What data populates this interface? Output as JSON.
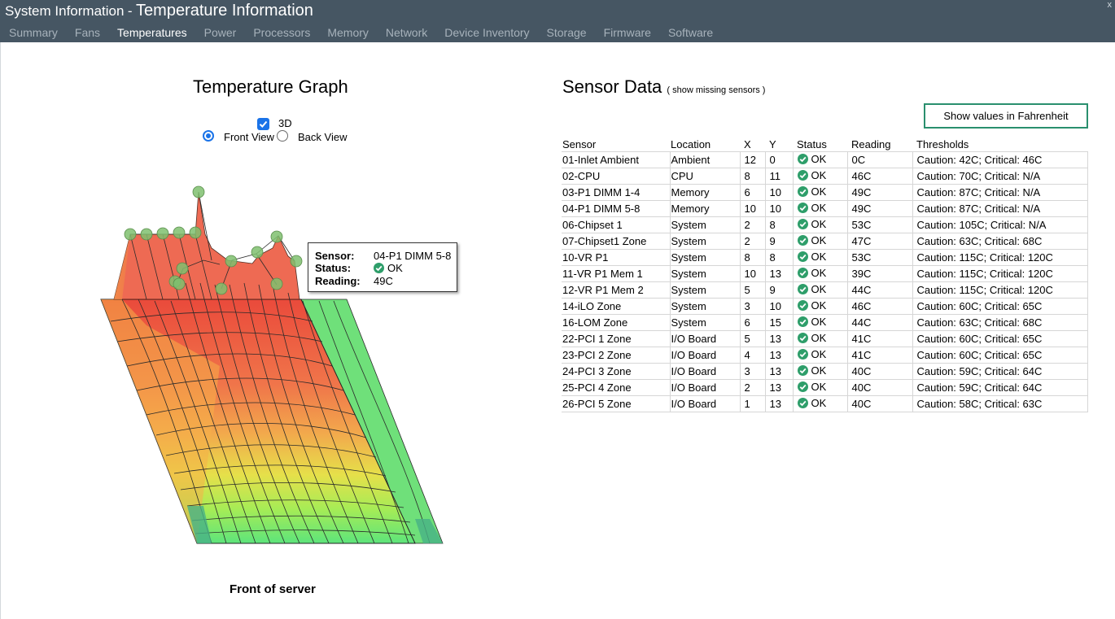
{
  "header": {
    "app_title": "System Information",
    "separator": "-",
    "page_title": "Temperature Information",
    "close_label": "x"
  },
  "tabs": [
    {
      "label": "Summary",
      "active": false
    },
    {
      "label": "Fans",
      "active": false
    },
    {
      "label": "Temperatures",
      "active": true
    },
    {
      "label": "Power",
      "active": false
    },
    {
      "label": "Processors",
      "active": false
    },
    {
      "label": "Memory",
      "active": false
    },
    {
      "label": "Network",
      "active": false
    },
    {
      "label": "Device Inventory",
      "active": false
    },
    {
      "label": "Storage",
      "active": false
    },
    {
      "label": "Firmware",
      "active": false
    },
    {
      "label": "Software",
      "active": false
    }
  ],
  "graph": {
    "title": "Temperature Graph",
    "checkbox_3d_label": "3D",
    "checkbox_3d_checked": true,
    "front_view_label": "Front View",
    "back_view_label": "Back View",
    "selected_view": "front",
    "caption": "Front of server",
    "tooltip": {
      "sensor_key": "Sensor:",
      "sensor_value": "04-P1 DIMM 5-8",
      "status_key": "Status:",
      "status_value": "OK",
      "reading_key": "Reading:",
      "reading_value": "49C"
    },
    "colors": {
      "hot": "#e8473a",
      "warm": "#f2a33c",
      "mild": "#e3e644",
      "cool": "#5ee877",
      "marker": "#7fbf6f"
    }
  },
  "sensors": {
    "title": "Sensor Data",
    "show_missing_link": "( show missing sensors )",
    "fahrenheit_button": "Show values in Fahrenheit",
    "columns": [
      "Sensor",
      "Location",
      "X",
      "Y",
      "Status",
      "Reading",
      "Thresholds"
    ],
    "rows": [
      {
        "sensor": "01-Inlet Ambient",
        "location": "Ambient",
        "x": "12",
        "y": "0",
        "status": "OK",
        "reading": "0C",
        "thresholds": "Caution: 42C; Critical: 46C"
      },
      {
        "sensor": "02-CPU",
        "location": "CPU",
        "x": "8",
        "y": "11",
        "status": "OK",
        "reading": "46C",
        "thresholds": "Caution: 70C; Critical: N/A"
      },
      {
        "sensor": "03-P1 DIMM 1-4",
        "location": "Memory",
        "x": "6",
        "y": "10",
        "status": "OK",
        "reading": "49C",
        "thresholds": "Caution: 87C; Critical: N/A"
      },
      {
        "sensor": "04-P1 DIMM 5-8",
        "location": "Memory",
        "x": "10",
        "y": "10",
        "status": "OK",
        "reading": "49C",
        "thresholds": "Caution: 87C; Critical: N/A"
      },
      {
        "sensor": "06-Chipset 1",
        "location": "System",
        "x": "2",
        "y": "8",
        "status": "OK",
        "reading": "53C",
        "thresholds": "Caution: 105C; Critical: N/A"
      },
      {
        "sensor": "07-Chipset1 Zone",
        "location": "System",
        "x": "2",
        "y": "9",
        "status": "OK",
        "reading": "47C",
        "thresholds": "Caution: 63C; Critical: 68C"
      },
      {
        "sensor": "10-VR P1",
        "location": "System",
        "x": "8",
        "y": "8",
        "status": "OK",
        "reading": "53C",
        "thresholds": "Caution: 115C; Critical: 120C"
      },
      {
        "sensor": "11-VR P1 Mem 1",
        "location": "System",
        "x": "10",
        "y": "13",
        "status": "OK",
        "reading": "39C",
        "thresholds": "Caution: 115C; Critical: 120C"
      },
      {
        "sensor": "12-VR P1 Mem 2",
        "location": "System",
        "x": "5",
        "y": "9",
        "status": "OK",
        "reading": "44C",
        "thresholds": "Caution: 115C; Critical: 120C"
      },
      {
        "sensor": "14-iLO Zone",
        "location": "System",
        "x": "3",
        "y": "10",
        "status": "OK",
        "reading": "46C",
        "thresholds": "Caution: 60C; Critical: 65C"
      },
      {
        "sensor": "16-LOM Zone",
        "location": "System",
        "x": "6",
        "y": "15",
        "status": "OK",
        "reading": "44C",
        "thresholds": "Caution: 63C; Critical: 68C"
      },
      {
        "sensor": "22-PCI 1 Zone",
        "location": "I/O Board",
        "x": "5",
        "y": "13",
        "status": "OK",
        "reading": "41C",
        "thresholds": "Caution: 60C; Critical: 65C"
      },
      {
        "sensor": "23-PCI 2 Zone",
        "location": "I/O Board",
        "x": "4",
        "y": "13",
        "status": "OK",
        "reading": "41C",
        "thresholds": "Caution: 60C; Critical: 65C"
      },
      {
        "sensor": "24-PCI 3 Zone",
        "location": "I/O Board",
        "x": "3",
        "y": "13",
        "status": "OK",
        "reading": "40C",
        "thresholds": "Caution: 59C; Critical: 64C"
      },
      {
        "sensor": "25-PCI 4 Zone",
        "location": "I/O Board",
        "x": "2",
        "y": "13",
        "status": "OK",
        "reading": "40C",
        "thresholds": "Caution: 59C; Critical: 64C"
      },
      {
        "sensor": "26-PCI 5 Zone",
        "location": "I/O Board",
        "x": "1",
        "y": "13",
        "status": "OK",
        "reading": "40C",
        "thresholds": "Caution: 58C; Critical: 63C"
      }
    ],
    "ok_color": "#2e9e6a"
  }
}
